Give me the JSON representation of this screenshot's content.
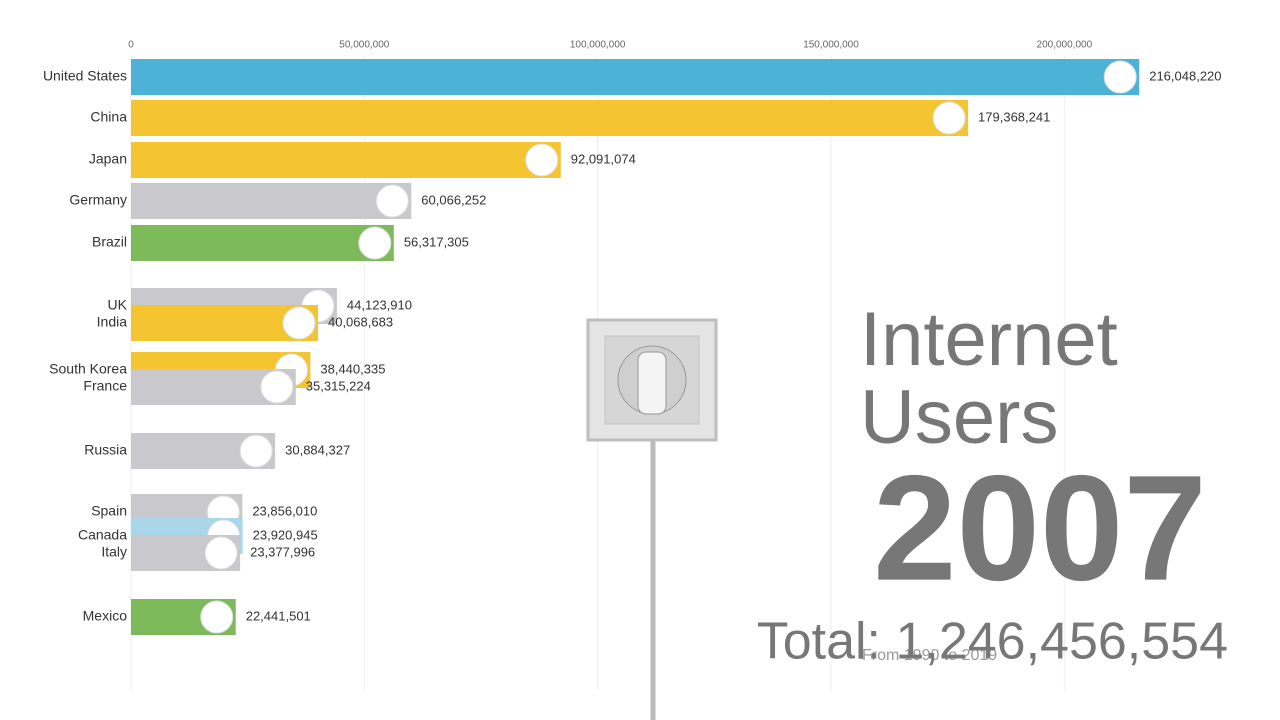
{
  "chart_data": {
    "type": "bar",
    "orientation": "horizontal",
    "title": "Internet Users",
    "year": "2007",
    "total": "Total: 1,246,456,554",
    "subtitle": "From 1990 to 2019",
    "categories": [
      "United States",
      "China",
      "Japan",
      "Germany",
      "Brazil",
      "UK",
      "India",
      "South Korea",
      "France",
      "Russia",
      "Spain",
      "Canada",
      "Italy",
      "Mexico"
    ],
    "values": [
      216048220,
      179368241,
      92091074,
      60066252,
      56317305,
      44123910,
      40068683,
      38440335,
      35315224,
      30884327,
      23856010,
      23920945,
      23377996,
      22441501
    ],
    "value_labels": [
      "216,048,220",
      "179,368,241",
      "92,091,074",
      "60,066,252",
      "56,317,305",
      "44,123,910",
      "40,068,683",
      "38,440,335",
      "35,315,224",
      "30,884,327",
      "23,856,010",
      "23,920,945",
      "23,377,996",
      "22,441,501"
    ],
    "colors": [
      "#4db3d6",
      "#f5c431",
      "#f5c431",
      "#c9c9cd",
      "#7dbb5a",
      "#c9c9cd",
      "#f5c431",
      "#f5c431",
      "#c9c9cd",
      "#c9c9cd",
      "#c9c9cd",
      "#a9d6e8",
      "#c9c9cd",
      "#7dbb5a"
    ],
    "xlim": [
      0,
      240000000
    ],
    "xticks": [
      0,
      {
        "value": 50000000,
        "label": "50,000,000"
      },
      {
        "value": 100000000,
        "label": "100,000,000"
      },
      {
        "value": 150000000,
        "label": "150,000,000"
      },
      {
        "value": 200000000,
        "label": "200,000,000"
      }
    ],
    "grid": true
  }
}
